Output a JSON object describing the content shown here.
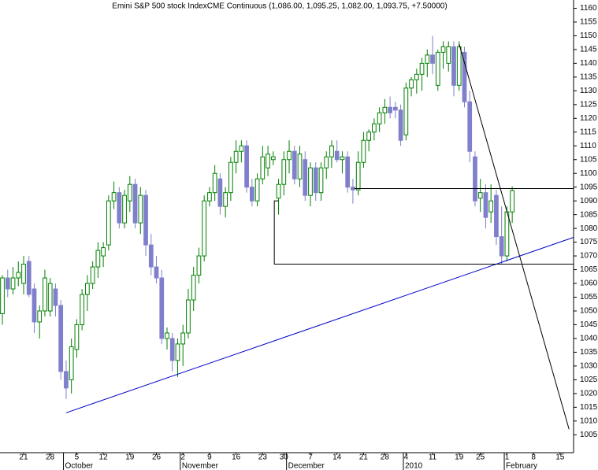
{
  "chart_data": {
    "type": "candlestick",
    "title": "Emini S&P 500 stock IndexCME Continuous (1,086.00, 1,095.25, 1,082.00, 1,093.75, +7.50000)",
    "up_color": "#008000",
    "down_color": "#7f7fcc",
    "ylim": [
      998.5,
      1163
    ],
    "xlim": [
      -0.45,
      107.55
    ],
    "yticks": [
      1005,
      1010,
      1015,
      1020,
      1025,
      1030,
      1035,
      1040,
      1045,
      1050,
      1055,
      1060,
      1065,
      1070,
      1075,
      1080,
      1085,
      1090,
      1095,
      1100,
      1105,
      1110,
      1115,
      1120,
      1125,
      1130,
      1135,
      1140,
      1145,
      1150,
      1155,
      1160
    ],
    "xticks": [
      {
        "value": 4,
        "label": "21"
      },
      {
        "value": 9,
        "label": "28"
      },
      {
        "value": 14,
        "label": "5"
      },
      {
        "value": 19,
        "label": "12"
      },
      {
        "value": 24,
        "label": "19"
      },
      {
        "value": 29,
        "label": "26"
      },
      {
        "value": 34,
        "label": "2"
      },
      {
        "value": 39,
        "label": "9"
      },
      {
        "value": 44,
        "label": "16"
      },
      {
        "value": 49,
        "label": "23"
      },
      {
        "value": 53,
        "label": "30"
      },
      {
        "value": 58,
        "label": "7"
      },
      {
        "value": 63,
        "label": "14"
      },
      {
        "value": 68,
        "label": "21"
      },
      {
        "value": 72,
        "label": "28"
      },
      {
        "value": 76,
        "label": "4"
      },
      {
        "value": 81,
        "label": "11"
      },
      {
        "value": 86,
        "label": "19"
      },
      {
        "value": 90,
        "label": "25"
      },
      {
        "value": 95,
        "label": "1"
      },
      {
        "value": 100,
        "label": "8"
      },
      {
        "value": 105,
        "label": "15"
      }
    ],
    "month_ticks": [
      {
        "value": 12,
        "label": "October"
      },
      {
        "value": 34,
        "label": "November"
      },
      {
        "value": 54,
        "label": "December"
      },
      {
        "value": 76,
        "label": "2010"
      },
      {
        "value": 95,
        "label": "February"
      }
    ],
    "ohlc": [
      [
        1049,
        1063,
        1045,
        1062
      ],
      [
        1062,
        1065,
        1055,
        1058
      ],
      [
        1058,
        1066,
        1056,
        1062
      ],
      [
        1062,
        1068,
        1059,
        1064
      ],
      [
        1060,
        1070,
        1056,
        1067
      ],
      [
        1068,
        1070,
        1055,
        1056
      ],
      [
        1058,
        1060,
        1042,
        1046
      ],
      [
        1046,
        1052,
        1040,
        1050
      ],
      [
        1050,
        1065,
        1048,
        1062
      ],
      [
        1050,
        1062,
        1048,
        1060
      ],
      [
        1058,
        1060,
        1048,
        1052
      ],
      [
        1052,
        1054,
        1025,
        1028
      ],
      [
        1028,
        1032,
        1018,
        1022
      ],
      [
        1025,
        1040,
        1020,
        1037
      ],
      [
        1036,
        1047,
        1033,
        1045
      ],
      [
        1045,
        1058,
        1043,
        1056
      ],
      [
        1056,
        1063,
        1050,
        1060
      ],
      [
        1060,
        1068,
        1058,
        1066
      ],
      [
        1066,
        1075,
        1062,
        1072
      ],
      [
        1070,
        1075,
        1066,
        1073
      ],
      [
        1074,
        1092,
        1072,
        1090
      ],
      [
        1090,
        1097,
        1087,
        1093
      ],
      [
        1093,
        1095,
        1080,
        1082
      ],
      [
        1082,
        1094,
        1080,
        1092
      ],
      [
        1090,
        1099,
        1086,
        1096
      ],
      [
        1096,
        1098,
        1080,
        1082
      ],
      [
        1082,
        1095,
        1078,
        1092
      ],
      [
        1092,
        1094,
        1070,
        1074
      ],
      [
        1074,
        1078,
        1063,
        1066
      ],
      [
        1066,
        1070,
        1060,
        1062
      ],
      [
        1062,
        1065,
        1038,
        1040
      ],
      [
        1040,
        1044,
        1036,
        1042
      ],
      [
        1040,
        1042,
        1028,
        1032
      ],
      [
        1032,
        1040,
        1026,
        1038
      ],
      [
        1038,
        1045,
        1030,
        1042
      ],
      [
        1042,
        1058,
        1040,
        1054
      ],
      [
        1054,
        1066,
        1050,
        1063
      ],
      [
        1063,
        1073,
        1060,
        1070
      ],
      [
        1070,
        1092,
        1068,
        1090
      ],
      [
        1090,
        1095,
        1088,
        1093
      ],
      [
        1093,
        1103,
        1090,
        1100
      ],
      [
        1098,
        1100,
        1085,
        1088
      ],
      [
        1088,
        1095,
        1084,
        1093
      ],
      [
        1093,
        1106,
        1090,
        1104
      ],
      [
        1104,
        1112,
        1100,
        1108
      ],
      [
        1108,
        1112,
        1104,
        1110
      ],
      [
        1110,
        1112,
        1093,
        1095
      ],
      [
        1095,
        1098,
        1088,
        1090
      ],
      [
        1090,
        1100,
        1088,
        1098
      ],
      [
        1098,
        1110,
        1096,
        1106
      ],
      [
        1102,
        1110,
        1099,
        1107
      ],
      [
        1105,
        1108,
        1103,
        1106
      ],
      [
        1091,
        1098,
        1085,
        1096
      ],
      [
        1096,
        1108,
        1092,
        1105
      ],
      [
        1105,
        1112,
        1100,
        1108
      ],
      [
        1108,
        1110,
        1096,
        1098
      ],
      [
        1098,
        1110,
        1095,
        1107
      ],
      [
        1105,
        1108,
        1090,
        1092
      ],
      [
        1092,
        1104,
        1088,
        1102
      ],
      [
        1102,
        1104,
        1090,
        1093
      ],
      [
        1093,
        1104,
        1090,
        1102
      ],
      [
        1102,
        1108,
        1098,
        1106
      ],
      [
        1106,
        1112,
        1102,
        1110
      ],
      [
        1108,
        1112,
        1104,
        1105
      ],
      [
        1105,
        1108,
        1100,
        1106
      ],
      [
        1106,
        1108,
        1093,
        1095
      ],
      [
        1095,
        1098,
        1089,
        1094
      ],
      [
        1094,
        1108,
        1092,
        1104
      ],
      [
        1104,
        1115,
        1102,
        1112
      ],
      [
        1112,
        1116,
        1108,
        1115
      ],
      [
        1115,
        1120,
        1112,
        1118
      ],
      [
        1118,
        1124,
        1115,
        1122
      ],
      [
        1122,
        1127,
        1118,
        1124
      ],
      [
        1124,
        1128,
        1120,
        1122
      ],
      [
        1124,
        1126,
        1120,
        1123
      ],
      [
        1123,
        1125,
        1110,
        1112
      ],
      [
        1114,
        1133,
        1112,
        1131
      ],
      [
        1131,
        1135,
        1128,
        1134
      ],
      [
        1134,
        1138,
        1129,
        1136
      ],
      [
        1136,
        1142,
        1130,
        1140
      ],
      [
        1140,
        1145,
        1135,
        1143
      ],
      [
        1143,
        1150,
        1136,
        1140
      ],
      [
        1132,
        1145,
        1130,
        1144
      ],
      [
        1144,
        1148,
        1138,
        1146
      ],
      [
        1140,
        1148,
        1137,
        1146
      ],
      [
        1146,
        1148,
        1128,
        1132
      ],
      [
        1132,
        1148,
        1130,
        1146
      ],
      [
        1144,
        1146,
        1124,
        1126
      ],
      [
        1126,
        1130,
        1104,
        1108
      ],
      [
        1106,
        1108,
        1088,
        1090
      ],
      [
        1091,
        1098,
        1086,
        1093
      ],
      [
        1093,
        1096,
        1080,
        1084
      ],
      [
        1086,
        1096,
        1082,
        1090
      ],
      [
        1092,
        1094,
        1074,
        1077
      ],
      [
        1077,
        1088,
        1067,
        1070
      ],
      [
        1070,
        1088,
        1068,
        1086
      ],
      [
        1086,
        1095.25,
        1082,
        1093.75
      ]
    ],
    "lines": [
      {
        "color": "#0000cc",
        "x": [
          12,
          107.5
        ],
        "y": [
          1013,
          1076.7
        ]
      },
      {
        "color": "#000000",
        "x": [
          86,
          106.7
        ],
        "y": [
          1147,
          1007
        ]
      },
      {
        "color": "#000000",
        "x": [
          66.3,
          107.5
        ],
        "y": [
          1094.5,
          1094.5
        ]
      },
      {
        "color": "#000000",
        "x": [
          52,
          51.2,
          51.2,
          107.5
        ],
        "y": [
          1090,
          1090,
          1067,
          1067
        ]
      }
    ]
  }
}
